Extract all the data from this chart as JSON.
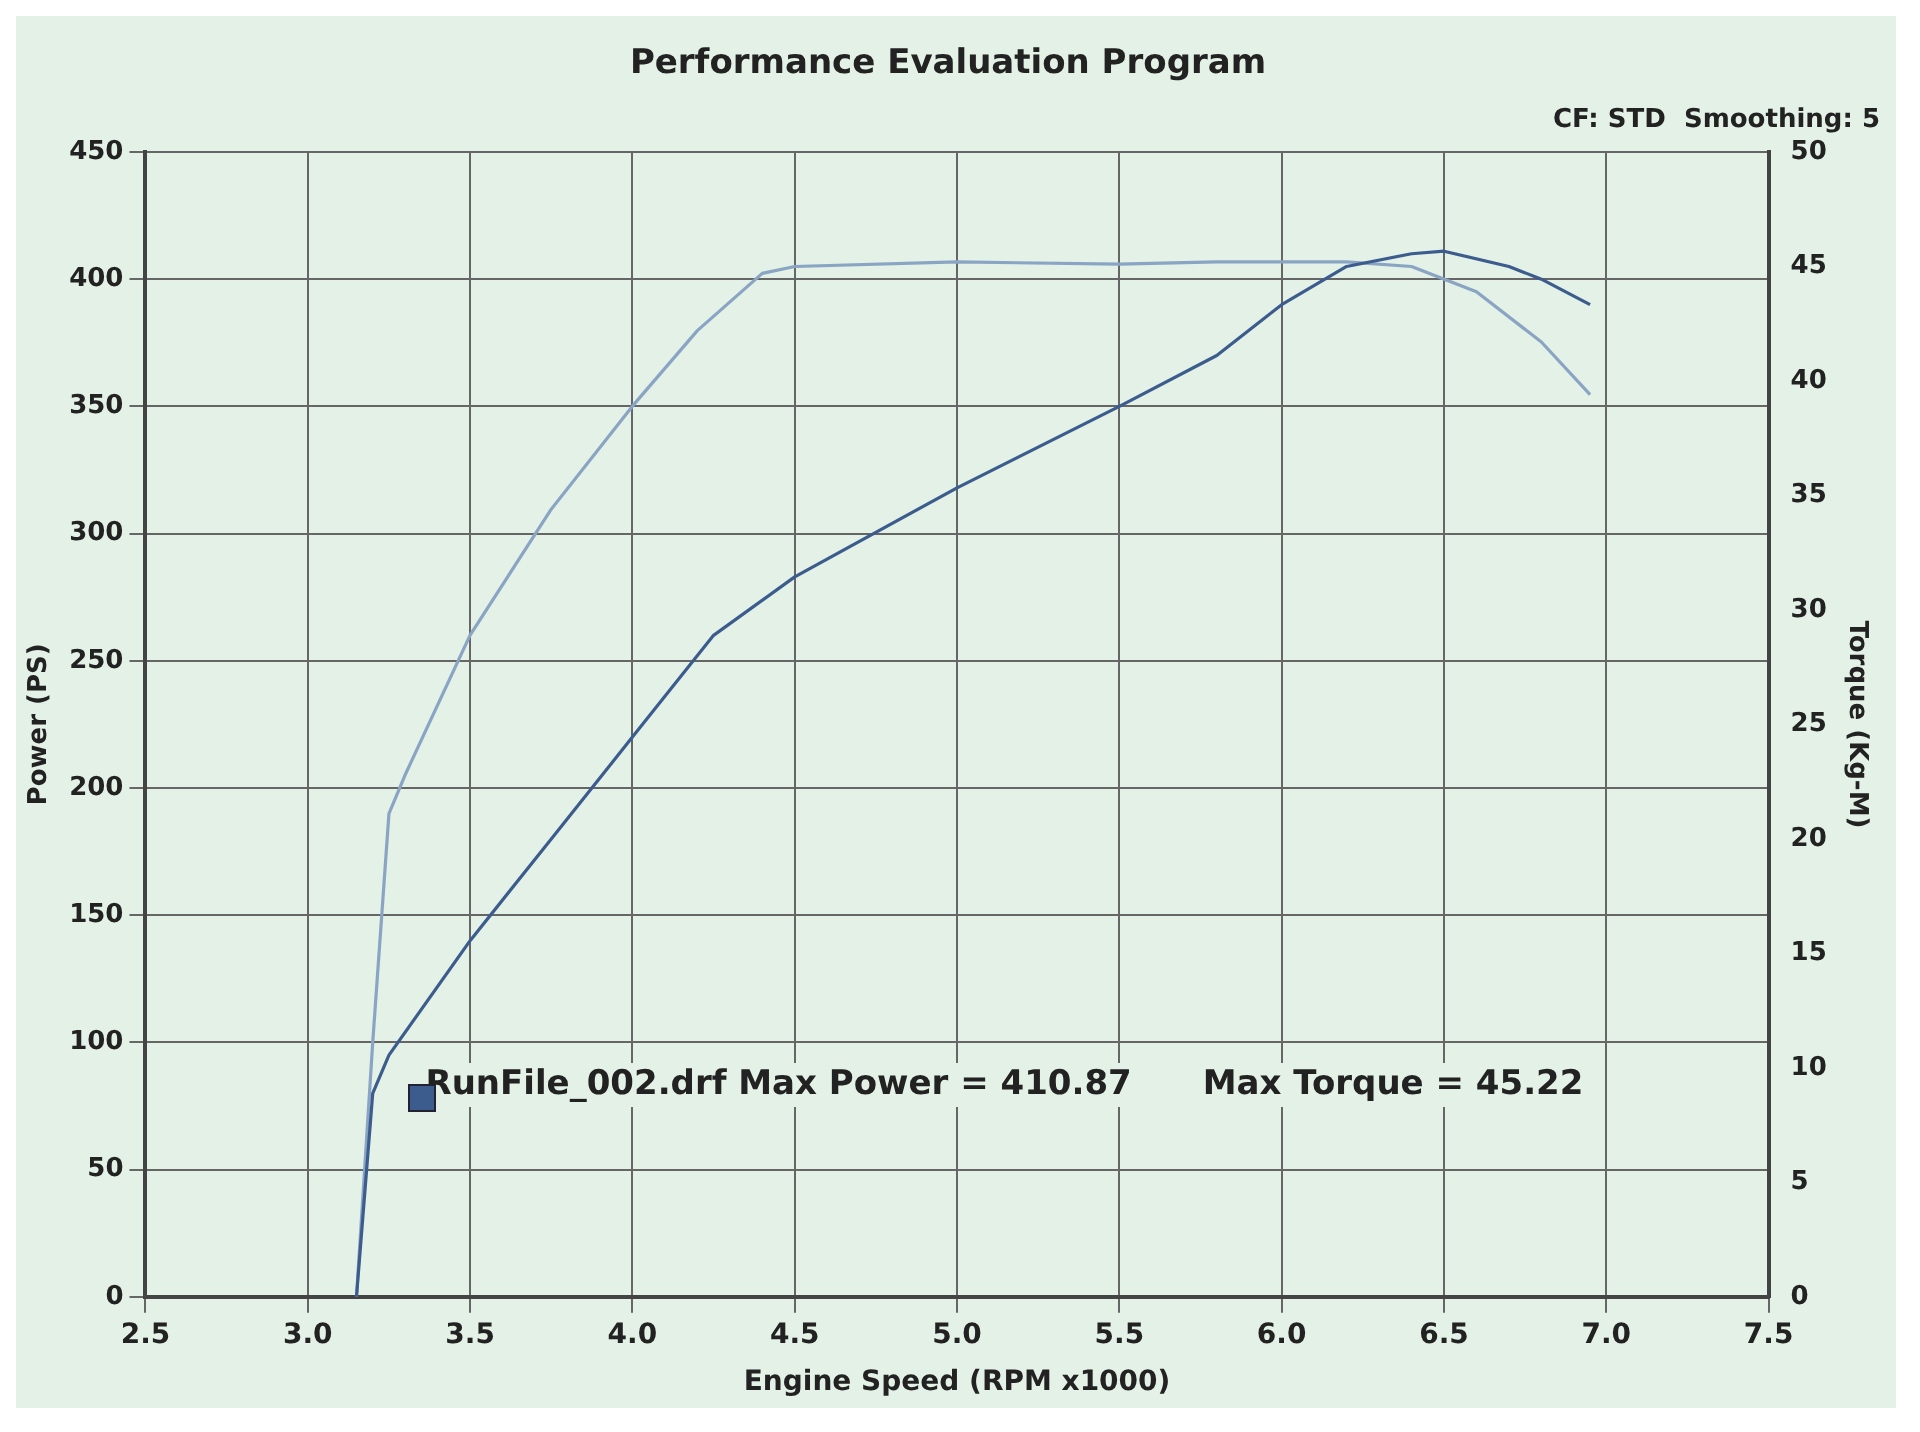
{
  "chart_data": {
    "type": "line",
    "title": "Performance Evaluation Program",
    "subtitle": "CF: STD  Smoothing: 5",
    "xlabel": "Engine Speed (RPM x1000)",
    "ylabel": "Power (PS)",
    "y2label": "Torque (Kg-M)",
    "annotations": [
      "RunFile_002.drf Max Power = 410.87      Max Torque = 45.22"
    ],
    "series": [
      {
        "color": "#3c5c8e",
        "x": [
          3.15,
          3.2,
          3.25,
          3.5,
          3.75,
          4.0,
          4.25,
          4.5,
          5.0,
          5.5,
          5.8,
          6.0,
          6.2,
          6.4,
          6.5,
          6.7,
          6.8,
          6.95
        ],
        "values": [
          0,
          80,
          95,
          140,
          180,
          220,
          260,
          283,
          318,
          350,
          370,
          390,
          405,
          410,
          411,
          405,
          400,
          390
        ]
      },
      {
        "color": "#8aa4c4",
        "axis": "y2",
        "x": [
          3.15,
          3.2,
          3.25,
          3.3,
          3.5,
          3.75,
          4.0,
          4.2,
          4.4,
          4.5,
          5.0,
          5.5,
          5.8,
          6.0,
          6.2,
          6.4,
          6.6,
          6.8,
          6.95
        ],
        "values": [
          0,
          11.1,
          21.1,
          22.8,
          28.9,
          34.4,
          38.9,
          42.2,
          44.7,
          45,
          45.2,
          45.1,
          45.2,
          45.2,
          45.2,
          45,
          43.9,
          41.7,
          39.4
        ]
      }
    ],
    "xlim": [
      2.5,
      7.5
    ],
    "xticks": [
      2.5,
      {
        "value": 3,
        "label": "3.0"
      },
      3.5,
      {
        "value": 4,
        "label": "4.0"
      },
      4.5,
      {
        "value": 5,
        "label": "5.0"
      },
      5.5,
      {
        "value": 6,
        "label": "6.0"
      },
      6.5,
      {
        "value": 7,
        "label": "7.0"
      },
      7.5
    ],
    "ylim": [
      0,
      450
    ],
    "yticks": [
      0,
      50,
      100,
      150,
      200,
      250,
      300,
      350,
      400,
      450
    ],
    "y2lim": [
      0,
      50
    ],
    "y2ticks": [
      0,
      5,
      10,
      15,
      20,
      25,
      30,
      35,
      40,
      45,
      50
    ],
    "grid": true,
    "legend": false,
    "marker": "none",
    "line_style": "solid"
  }
}
